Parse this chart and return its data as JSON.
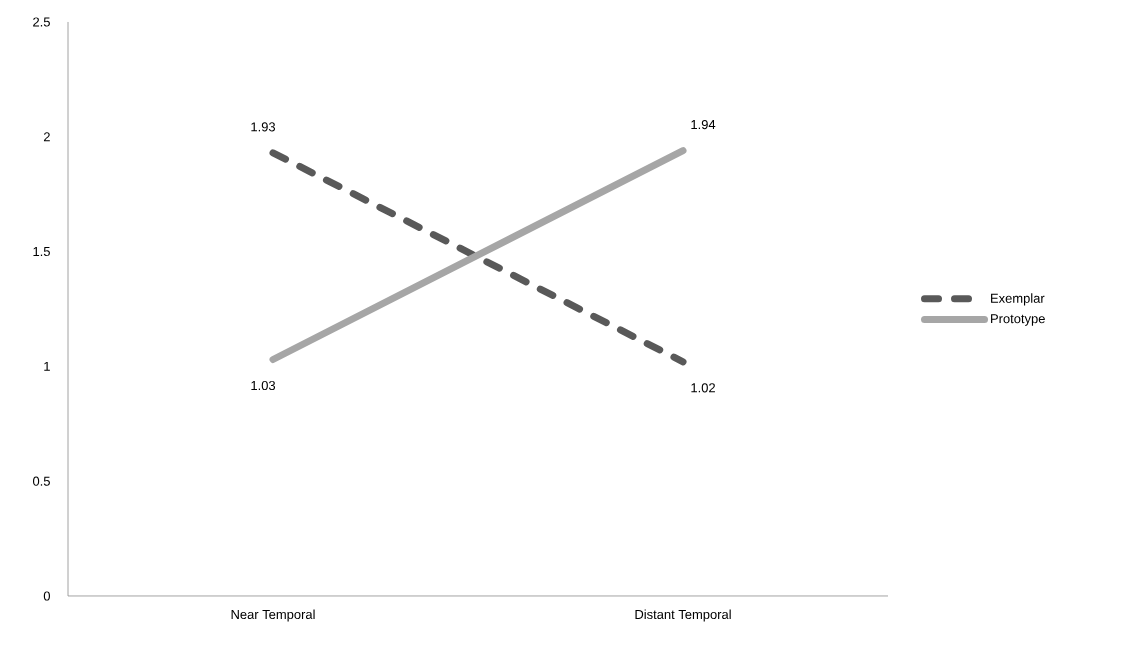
{
  "chart_data": {
    "type": "line",
    "categories": [
      "Near Temporal",
      "Distant Temporal"
    ],
    "series": [
      {
        "name": "Exemplar",
        "color": "#595959",
        "values": [
          1.93,
          1.02
        ],
        "line_style": "dashed"
      },
      {
        "name": "Prototype",
        "color": "#a6a6a6",
        "values": [
          1.03,
          1.94
        ],
        "line_style": "solid"
      }
    ],
    "ylim": [
      0,
      2.5
    ],
    "yticks": [
      0,
      0.5,
      1,
      1.5,
      2,
      2.5
    ],
    "data_labels": true,
    "legend": "right",
    "grid": false,
    "marker": "none"
  }
}
